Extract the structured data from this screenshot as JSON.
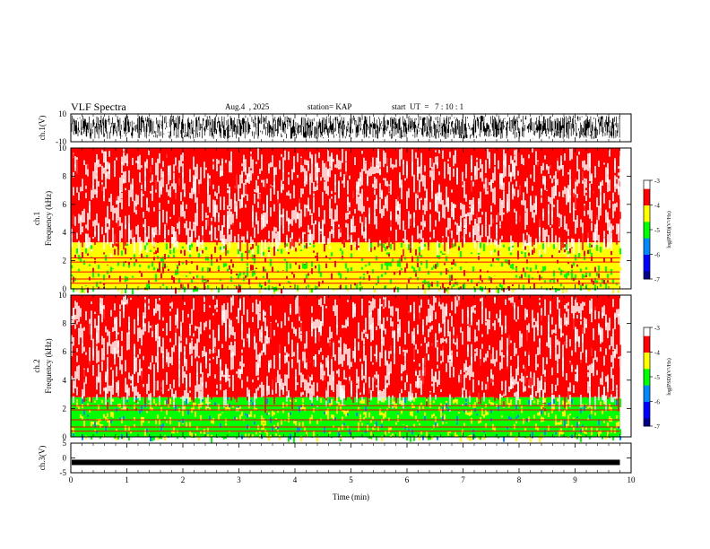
{
  "header": {
    "title": "VLF Spectra",
    "date": "Aug.4  , 2025",
    "station": "station= KAP",
    "start_ut": "start  UT  =   7 : 10 : 1"
  },
  "colors": {
    "colormap": [
      "#00008b",
      "#0000ff",
      "#0088ff",
      "#00ff00",
      "#ffff00",
      "#ff0000",
      "#ffffff"
    ]
  },
  "chart_data": [
    {
      "type": "line",
      "name": "ch1-waveform",
      "ylabel": "ch.1(V)",
      "ylim": [
        -10,
        10
      ],
      "yticks": [
        "10",
        "-10"
      ],
      "description_of_values": "noise-like waveform spanning most of the range",
      "amplitude_range": [
        -8,
        9
      ]
    },
    {
      "type": "heatmap",
      "name": "ch1-spectrogram",
      "ylabel": "ch.1\nFrequency  (kHz)",
      "ylim": [
        0,
        10
      ],
      "yticks": [
        "0",
        "2",
        "4",
        "6",
        "8",
        "10"
      ],
      "colorbar": {
        "label": "log(PSD)(V²/Hz)",
        "range": [
          -7,
          -3
        ],
        "ticks": [
          "-3",
          "-4",
          "-5",
          "-6",
          "-7"
        ]
      },
      "bands": [
        {
          "freq_range_khz": [
            0,
            3.3
          ],
          "log_psd": -4.4,
          "note": "yellow/green band"
        },
        {
          "freq_range_khz": [
            3.3,
            10
          ],
          "log_psd": -3.4,
          "note": "red with white speckle"
        }
      ]
    },
    {
      "type": "heatmap",
      "name": "ch2-spectrogram",
      "ylabel": "ch.2\nFrequency  (kHz)",
      "ylim": [
        0,
        10
      ],
      "yticks": [
        "0",
        "2",
        "4",
        "6",
        "8",
        "10"
      ],
      "colorbar": {
        "label": "log(PSD)(V²/Hz)",
        "range": [
          -7,
          -3
        ],
        "ticks": [
          "-3",
          "-4",
          "-5",
          "-6",
          "-7"
        ]
      },
      "bands": [
        {
          "freq_range_khz": [
            0,
            2.8
          ],
          "log_psd": -4.8,
          "note": "green/yellow band"
        },
        {
          "freq_range_khz": [
            2.8,
            10
          ],
          "log_psd": -3.4,
          "note": "red with white speckle"
        }
      ]
    },
    {
      "type": "line",
      "name": "ch3-waveform",
      "ylabel": "ch.3(V)",
      "ylim": [
        -5,
        5
      ],
      "yticks": [
        "5",
        "0",
        "-5"
      ],
      "level": -1.5
    }
  ],
  "xaxis": {
    "label": "Time  (min)",
    "range": [
      0,
      10
    ],
    "ticks": [
      "0",
      "1",
      "2",
      "3",
      "4",
      "5",
      "6",
      "7",
      "8",
      "9",
      "10"
    ],
    "data_end_min": 9.8
  }
}
